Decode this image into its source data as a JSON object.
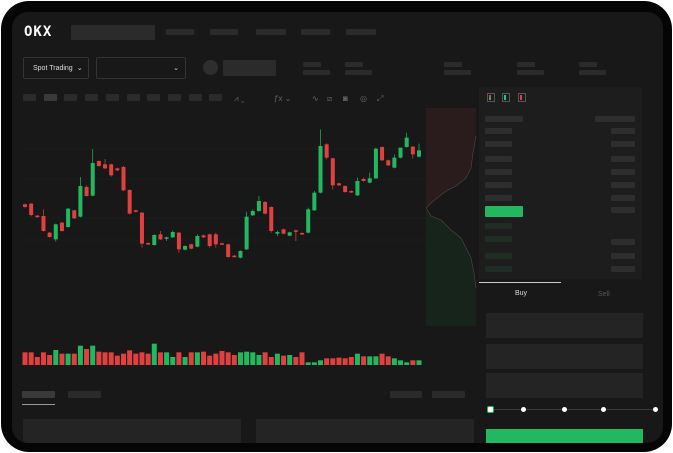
{
  "header": {
    "logo": "OKX",
    "nav_items": 5
  },
  "toolbar": {
    "market_select": "Spot Trading",
    "pair_select": "",
    "icons": [
      "chart-type-icon",
      "indicator-icon",
      "line-tool-icon",
      "ruler-icon",
      "camera-icon",
      "settings-icon",
      "fullscreen-icon"
    ]
  },
  "orderbook": {
    "view_icons": [
      "orderbook-both-icon",
      "orderbook-bids-icon",
      "orderbook-asks-icon"
    ]
  },
  "trade": {
    "buy_label": "Buy",
    "sell_label": "Sell",
    "leverage_slider_value": 0,
    "slider_steps": 5
  },
  "colors": {
    "up": "#22b860",
    "down": "#e04040",
    "background": "#181818"
  },
  "chart_data": {
    "type": "candlestick",
    "candles": [
      [
        250,
        242,
        252,
        240
      ],
      [
        252,
        218,
        254,
        214
      ],
      [
        216,
        212,
        218,
        210
      ],
      [
        215,
        170,
        235,
        168
      ],
      [
        165,
        152,
        167,
        150
      ],
      [
        145,
        190,
        192,
        138
      ],
      [
        195,
        170,
        197,
        168
      ],
      [
        182,
        237,
        239,
        180
      ],
      [
        232,
        208,
        234,
        206
      ],
      [
        213,
        305,
        332,
        211
      ],
      [
        302,
        275,
        307,
        273
      ],
      [
        276,
        374,
        416,
        274
      ],
      [
        380,
        365,
        382,
        363
      ],
      [
        370,
        358,
        386,
        356
      ],
      [
        370,
        337,
        372,
        333
      ],
      [
        358,
        352,
        360,
        350
      ],
      [
        362,
        292,
        366,
        290
      ],
      [
        293,
        222,
        295,
        220
      ],
      [
        232,
        228,
        234,
        226
      ],
      [
        225,
        132,
        227,
        120
      ],
      [
        134,
        130,
        136,
        128
      ],
      [
        128,
        158,
        160,
        126
      ],
      [
        160,
        145,
        170,
        143
      ],
      [
        148,
        151,
        153,
        140
      ],
      [
        151,
        167,
        171,
        149
      ],
      [
        165,
        115,
        167,
        105
      ],
      [
        114,
        125,
        127,
        112
      ],
      [
        130,
        117,
        132,
        115
      ],
      [
        123,
        155,
        160,
        121
      ],
      [
        157,
        151,
        159,
        149
      ],
      [
        160,
        125,
        162,
        120
      ],
      [
        160,
        130,
        165,
        120
      ],
      [
        133,
        131,
        135,
        129
      ],
      [
        130,
        92,
        132,
        90
      ],
      [
        96,
        92,
        98,
        90
      ],
      [
        90,
        110,
        112,
        88
      ],
      [
        115,
        213,
        228,
        113
      ],
      [
        217,
        230,
        235,
        215
      ],
      [
        230,
        260,
        275,
        228
      ],
      [
        257,
        222,
        260,
        220
      ],
      [
        242,
        170,
        244,
        165
      ],
      [
        162,
        167,
        172,
        155
      ],
      [
        175,
        162,
        177,
        160
      ],
      [
        156,
        166,
        168,
        154
      ],
      [
        172,
        170,
        174,
        140
      ],
      [
        164,
        160,
        166,
        158
      ],
      [
        165,
        235,
        240,
        163
      ],
      [
        232,
        285,
        290,
        230
      ],
      [
        285,
        425,
        475,
        283
      ],
      [
        430,
        390,
        433,
        385
      ],
      [
        388,
        307,
        390,
        295
      ],
      [
        313,
        307,
        315,
        305
      ],
      [
        305,
        287,
        307,
        285
      ],
      [
        290,
        286,
        292,
        284
      ],
      [
        277,
        320,
        330,
        275
      ],
      [
        326,
        320,
        330,
        318
      ],
      [
        315,
        328,
        345,
        313
      ],
      [
        328,
        417,
        420,
        326
      ],
      [
        422,
        382,
        424,
        380
      ],
      [
        382,
        367,
        384,
        365
      ],
      [
        360,
        390,
        400,
        358
      ],
      [
        390,
        420,
        420,
        388
      ],
      [
        422,
        450,
        465,
        420
      ],
      [
        423,
        400,
        425,
        387
      ],
      [
        393,
        412,
        432,
        391
      ]
    ],
    "volume": [
      38,
      38,
      24,
      38,
      30,
      45,
      34,
      34,
      34,
      58,
      48,
      58,
      40,
      38,
      38,
      28,
      34,
      44,
      34,
      38,
      34,
      64,
      38,
      38,
      24,
      38,
      24,
      38,
      38,
      40,
      28,
      34,
      42,
      38,
      30,
      38,
      40,
      38,
      30,
      38,
      24,
      34,
      28,
      30,
      24,
      38,
      8,
      8,
      14,
      20,
      20,
      22,
      20,
      24,
      34,
      26,
      26,
      26,
      34,
      26,
      20,
      14,
      8,
      14,
      14
    ],
    "grid": true,
    "axis_labels": false
  }
}
